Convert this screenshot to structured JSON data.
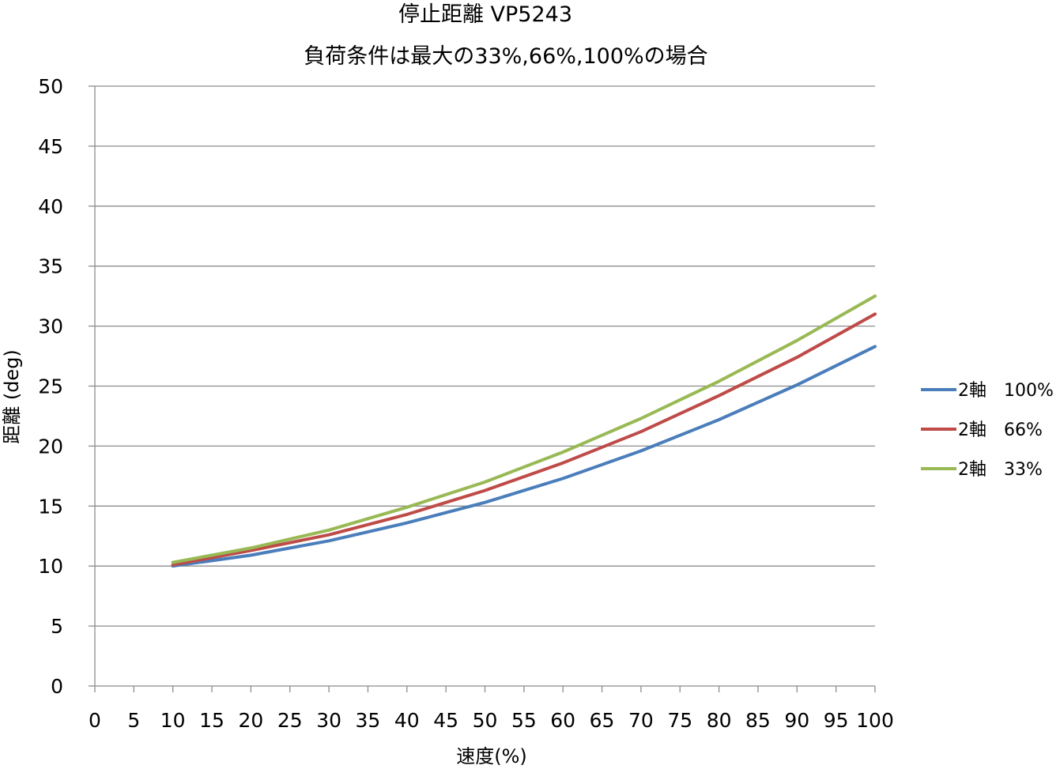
{
  "chart_data": {
    "type": "line",
    "title": "停止距離 VP5243",
    "subtitle": "負荷条件は最大の33%,66%,100%の場合",
    "xlabel": "速度(%)",
    "ylabel": "距離 (deg)",
    "x_ticks": [
      "0",
      "5",
      "10",
      "15",
      "20",
      "25",
      "30",
      "35",
      "40",
      "45",
      "50",
      "55",
      "60",
      "65",
      "70",
      "75",
      "80",
      "85",
      "90",
      "95",
      "100"
    ],
    "y_ticks": [
      "0",
      "5",
      "10",
      "15",
      "20",
      "25",
      "30",
      "35",
      "40",
      "45",
      "50"
    ],
    "xlim": [
      0,
      100
    ],
    "ylim": [
      0,
      50
    ],
    "grid": "horizontal",
    "legend_position": "right",
    "x": [
      10,
      20,
      30,
      40,
      50,
      60,
      70,
      80,
      90,
      100
    ],
    "series": [
      {
        "name": "2軸　100%",
        "color": "#4a7ebb",
        "values": [
          10.0,
          10.9,
          12.1,
          13.6,
          15.3,
          17.3,
          19.6,
          22.2,
          25.1,
          28.3
        ]
      },
      {
        "name": "2軸　66%",
        "color": "#be4b48",
        "values": [
          10.1,
          11.3,
          12.6,
          14.3,
          16.3,
          18.6,
          21.2,
          24.2,
          27.4,
          31.0
        ]
      },
      {
        "name": "2軸　33%",
        "color": "#98b954",
        "values": [
          10.3,
          11.5,
          13.0,
          14.9,
          17.0,
          19.5,
          22.3,
          25.4,
          28.8,
          32.5
        ]
      }
    ]
  }
}
